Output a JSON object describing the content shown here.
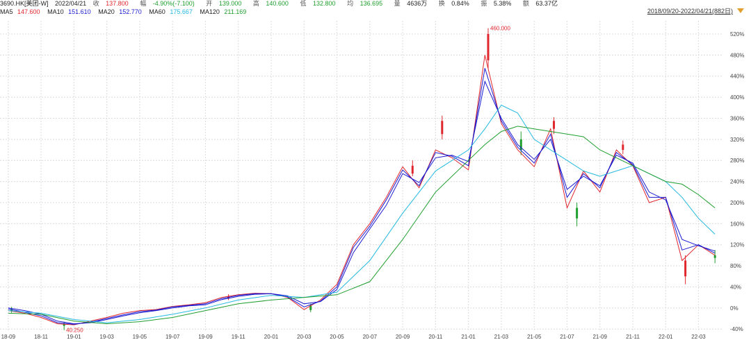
{
  "header": {
    "symbol": "3690.HK[美团-W]",
    "date": "2022/04/21",
    "close_label": "收",
    "close": "137.800",
    "change_label": "幅",
    "change": "-4.90%(-7.100)",
    "open_label": "开",
    "open": "139.000",
    "high_label": "高",
    "high": "140.600",
    "low_label": "低",
    "low": "132.800",
    "avg_label": "均",
    "avg": "136.695",
    "volume_label": "量",
    "volume": "4636万",
    "turnover_label": "换",
    "turnover": "0.84%",
    "amplitude_label": "振",
    "amplitude": "5.38%",
    "amount_label": "额",
    "amount": "63.37亿"
  },
  "ma_legend": [
    {
      "name": "MA5",
      "value": "147.600",
      "color": "#e0262d"
    },
    {
      "name": "MA10",
      "value": "151.610",
      "color": "#1a1ad0"
    },
    {
      "name": "MA20",
      "value": "152.770",
      "color": "#1a1ad0"
    },
    {
      "name": "MA60",
      "value": "175.667",
      "color": "#22b8e0"
    },
    {
      "name": "MA120",
      "value": "211.169",
      "color": "#1e9e2e"
    }
  ],
  "range_label": "2018/09/20-2022/04/21(882日)",
  "colors": {
    "up": "#e0262d",
    "down": "#1e9e2e",
    "ma5": "#e0262d",
    "ma10": "#1a1ad0",
    "ma20": "#1a1ad0",
    "ma60": "#22b8e0",
    "ma120": "#1e9e2e",
    "grid": "#dcdcdc"
  },
  "chart_data": {
    "type": "line",
    "y_axis_format": "percent",
    "ylim": [
      -45,
      545
    ],
    "y_ticks": [
      "-40%",
      "0%",
      "40%",
      "80%",
      "120%",
      "160%",
      "200%",
      "240%",
      "280%",
      "320%",
      "360%",
      "400%",
      "440%",
      "480%",
      "520%"
    ],
    "y_tick_values": [
      -40,
      0,
      40,
      80,
      120,
      160,
      200,
      240,
      280,
      320,
      360,
      400,
      440,
      480,
      520
    ],
    "x_ticks": [
      "18-09",
      "18-11",
      "19-01",
      "19-03",
      "19-05",
      "19-07",
      "19-09",
      "19-11",
      "20-01",
      "20-03",
      "20-05",
      "20-07",
      "20-09",
      "20-11",
      "21-01",
      "21-03",
      "21-05",
      "21-07",
      "21-09",
      "21-11",
      "22-01",
      "22-03"
    ],
    "x_tick_positions": [
      0,
      2,
      4,
      6,
      8,
      10,
      12,
      14,
      16,
      18,
      20,
      22,
      24,
      26,
      28,
      30,
      32,
      34,
      36,
      38,
      40,
      42
    ],
    "x_range": [
      -0.5,
      43.5
    ],
    "annotations": [
      {
        "label": "460.000",
        "x": 29.2,
        "y": 531
      },
      {
        "label": "40.250",
        "x": 3.4,
        "y": -42
      }
    ],
    "series": [
      {
        "name": "MA5",
        "color": "#e0262d",
        "x": [
          0,
          1,
          2,
          3,
          4,
          5,
          6,
          7,
          8,
          9,
          10,
          11,
          12,
          13,
          14,
          15,
          16,
          17,
          18,
          19,
          20,
          21,
          22,
          23,
          24,
          25,
          26,
          27,
          28,
          29,
          30,
          31,
          32,
          33,
          34,
          35,
          36,
          37,
          38,
          39,
          40,
          41,
          42,
          43
        ],
        "y": [
          -5,
          -10,
          -18,
          -30,
          -32,
          -25,
          -18,
          -10,
          -5,
          -3,
          3,
          6,
          10,
          20,
          25,
          28,
          27,
          20,
          -3,
          15,
          45,
          120,
          160,
          210,
          268,
          228,
          300,
          285,
          262,
          480,
          350,
          300,
          268,
          340,
          190,
          260,
          220,
          300,
          270,
          200,
          210,
          90,
          120,
          100
        ]
      },
      {
        "name": "MA10",
        "color": "#1a1ad0",
        "x": [
          0,
          1,
          2,
          3,
          4,
          5,
          6,
          7,
          8,
          9,
          10,
          11,
          12,
          13,
          14,
          15,
          16,
          17,
          18,
          19,
          20,
          21,
          22,
          23,
          24,
          25,
          26,
          27,
          28,
          29,
          30,
          31,
          32,
          33,
          34,
          35,
          36,
          37,
          38,
          39,
          40,
          41,
          42,
          43
        ],
        "y": [
          -2,
          -8,
          -15,
          -28,
          -31,
          -27,
          -20,
          -13,
          -7,
          -4,
          2,
          5,
          8,
          18,
          24,
          27,
          27,
          21,
          2,
          13,
          40,
          115,
          155,
          205,
          262,
          232,
          295,
          288,
          270,
          455,
          355,
          305,
          275,
          330,
          210,
          255,
          228,
          295,
          272,
          210,
          210,
          110,
          120,
          104
        ]
      },
      {
        "name": "MA20",
        "color": "#1a1ad0",
        "x": [
          0,
          1,
          2,
          3,
          4,
          5,
          6,
          7,
          8,
          9,
          10,
          11,
          12,
          13,
          14,
          15,
          16,
          17,
          18,
          19,
          20,
          21,
          22,
          23,
          24,
          25,
          26,
          27,
          28,
          29,
          30,
          31,
          32,
          33,
          34,
          35,
          36,
          37,
          38,
          39,
          40,
          41,
          42,
          43
        ],
        "y": [
          0,
          -5,
          -12,
          -25,
          -30,
          -28,
          -22,
          -15,
          -9,
          -5,
          0,
          4,
          6,
          16,
          22,
          26,
          27,
          23,
          8,
          12,
          35,
          105,
          150,
          195,
          255,
          238,
          285,
          290,
          278,
          430,
          360,
          310,
          282,
          320,
          225,
          250,
          232,
          290,
          275,
          220,
          205,
          130,
          118,
          108
        ]
      },
      {
        "name": "MA60",
        "color": "#22b8e0",
        "x": [
          0,
          2,
          4,
          6,
          8,
          10,
          12,
          14,
          16,
          18,
          20,
          22,
          24,
          26,
          28,
          29,
          30,
          31,
          32,
          33,
          34,
          35,
          36,
          37,
          38,
          39,
          40,
          41,
          42,
          43
        ],
        "y": [
          -5,
          -10,
          -22,
          -28,
          -22,
          -12,
          0,
          15,
          24,
          20,
          30,
          90,
          180,
          260,
          300,
          340,
          385,
          370,
          320,
          300,
          280,
          260,
          250,
          260,
          270,
          255,
          240,
          210,
          170,
          140
        ]
      },
      {
        "name": "MA120",
        "color": "#1e9e2e",
        "x": [
          0,
          2,
          4,
          6,
          8,
          10,
          12,
          14,
          16,
          18,
          20,
          22,
          24,
          26,
          28,
          29,
          30,
          31,
          32,
          33,
          34,
          35,
          36,
          37,
          38,
          39,
          40,
          41,
          42,
          43
        ],
        "y": [
          -10,
          -12,
          -25,
          -30,
          -26,
          -18,
          -5,
          8,
          15,
          20,
          25,
          50,
          130,
          220,
          280,
          310,
          335,
          345,
          340,
          335,
          330,
          325,
          300,
          285,
          270,
          255,
          240,
          235,
          215,
          190
        ]
      }
    ],
    "candles": [
      {
        "x": 0.2,
        "open": -2,
        "close": -6,
        "high": 2,
        "low": -9
      },
      {
        "x": 3.4,
        "open": -30,
        "close": -34,
        "high": -26,
        "low": -42
      },
      {
        "x": 13.4,
        "open": 18,
        "close": 22,
        "high": 26,
        "low": 15
      },
      {
        "x": 18.4,
        "open": 5,
        "close": -4,
        "high": 8,
        "low": -8
      },
      {
        "x": 24.6,
        "open": 255,
        "close": 270,
        "high": 280,
        "low": 250
      },
      {
        "x": 26.4,
        "open": 330,
        "close": 355,
        "high": 365,
        "low": 320
      },
      {
        "x": 29.2,
        "open": 470,
        "close": 520,
        "high": 531,
        "low": 455
      },
      {
        "x": 31.2,
        "open": 320,
        "close": 300,
        "high": 335,
        "low": 290
      },
      {
        "x": 33.2,
        "open": 340,
        "close": 355,
        "high": 362,
        "low": 330
      },
      {
        "x": 34.6,
        "open": 190,
        "close": 170,
        "high": 200,
        "low": 155
      },
      {
        "x": 37.4,
        "open": 300,
        "close": 310,
        "high": 318,
        "low": 292
      },
      {
        "x": 41.2,
        "open": 60,
        "close": 90,
        "high": 100,
        "low": 45
      },
      {
        "x": 43.0,
        "open": 100,
        "close": 95,
        "high": 110,
        "low": 85
      }
    ]
  }
}
